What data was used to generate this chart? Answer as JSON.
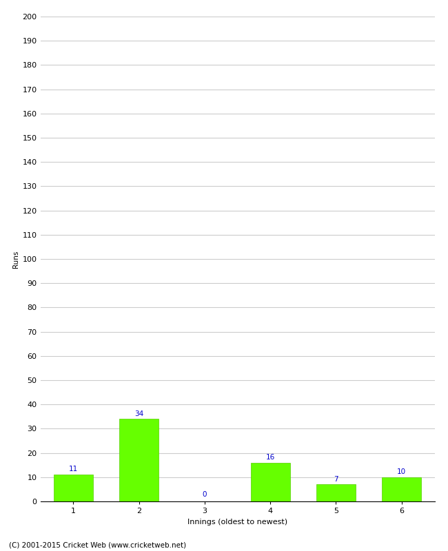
{
  "xlabel": "Innings (oldest to newest)",
  "ylabel": "Runs",
  "categories": [
    "1",
    "2",
    "3",
    "4",
    "5",
    "6"
  ],
  "values": [
    11,
    34,
    0,
    16,
    7,
    10
  ],
  "bar_color": "#66ff00",
  "bar_edge_color": "#55cc00",
  "label_color": "#0000cc",
  "ylim": [
    0,
    200
  ],
  "yticks": [
    0,
    10,
    20,
    30,
    40,
    50,
    60,
    70,
    80,
    90,
    100,
    110,
    120,
    130,
    140,
    150,
    160,
    170,
    180,
    190,
    200
  ],
  "background_color": "#ffffff",
  "grid_color": "#cccccc",
  "footer_text": "(C) 2001-2015 Cricket Web (www.cricketweb.net)",
  "label_fontsize": 7.5,
  "axis_fontsize": 8,
  "ylabel_fontsize": 7.5,
  "footer_fontsize": 7.5
}
